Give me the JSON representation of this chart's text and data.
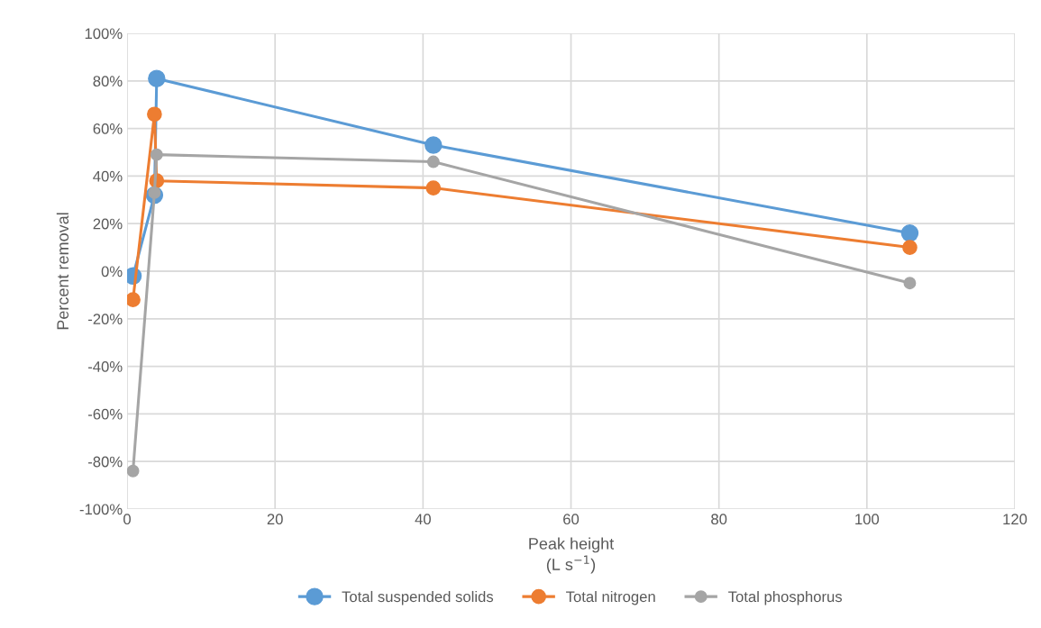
{
  "chart_data": {
    "type": "line",
    "xlabel": "Peak height\n(L s$^{−1}$)",
    "ylabel": "Percent removal",
    "x": [
      0.8,
      3.7,
      4.0,
      41.4,
      105.8
    ],
    "series": [
      {
        "name": "Total suspended solids",
        "color": "#5b9bd5",
        "values": [
          -2,
          32,
          81,
          53,
          16
        ]
      },
      {
        "name": "Total nitrogen",
        "color": "#ed7d31",
        "values": [
          -12,
          66,
          38,
          35,
          10
        ]
      },
      {
        "name": "Total phosphorus",
        "color": "#a5a5a5",
        "values": [
          -84,
          33,
          49,
          46,
          -5
        ]
      }
    ],
    "xlim": [
      0,
      120
    ],
    "xticks": [
      0,
      20,
      40,
      60,
      80,
      100,
      120
    ],
    "ylim": [
      -100,
      100
    ],
    "yticks": [
      {
        "value": -100,
        "label": "-100%"
      },
      {
        "value": -80,
        "label": "-80%"
      },
      {
        "value": -60,
        "label": "-60%"
      },
      {
        "value": -40,
        "label": "-40%"
      },
      {
        "value": -20,
        "label": "-20%"
      },
      {
        "value": 0,
        "label": "0%"
      },
      {
        "value": 20,
        "label": "20%"
      },
      {
        "value": 40,
        "label": "40%"
      },
      {
        "value": 60,
        "label": "60%"
      },
      {
        "value": 80,
        "label": "80%"
      },
      {
        "value": 100,
        "label": "100%"
      }
    ],
    "grid": true,
    "legend": "bottom",
    "marker": "circle",
    "line_style": "solid"
  }
}
